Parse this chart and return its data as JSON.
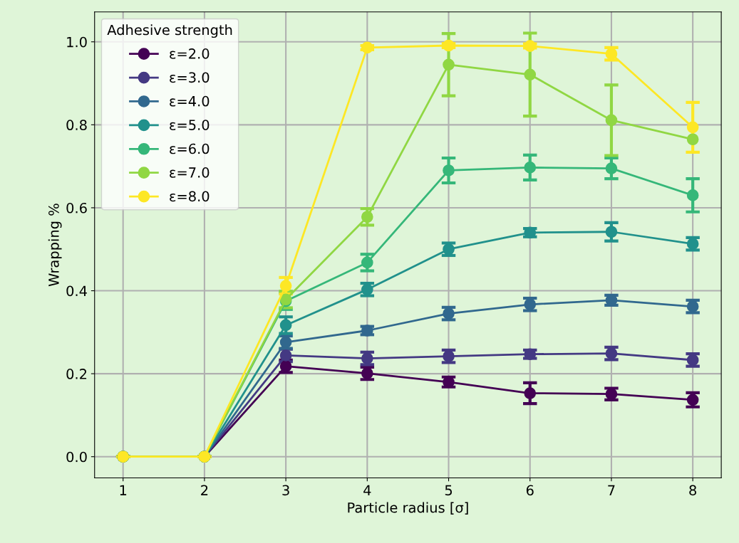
{
  "chart_data": {
    "type": "line",
    "xlabel": "Particle radius [σ]",
    "ylabel": "Wrapping %",
    "legend_title": "Adhesive strength",
    "legend": "top left",
    "grid": true,
    "marker": "circle",
    "line_style": "solid",
    "x": [
      1,
      2,
      3,
      4,
      5,
      6,
      7,
      8
    ],
    "xlim": [
      0.65,
      8.35
    ],
    "ylim": [
      -0.051,
      1.072
    ],
    "xticks": [
      1,
      2,
      3,
      4,
      5,
      6,
      7,
      8
    ],
    "yticks": [
      {
        "value": 0,
        "label": "0.0"
      },
      {
        "value": 0.2,
        "label": "0.2"
      },
      {
        "value": 0.4,
        "label": "0.4"
      },
      {
        "value": 0.6,
        "label": "0.6"
      },
      {
        "value": 0.8,
        "label": "0.8"
      },
      {
        "value": 1,
        "label": "1.0"
      }
    ],
    "series": [
      {
        "name": "ε=2.0",
        "color": "#440154",
        "values": [
          0,
          0,
          0.218,
          0.201,
          0.18,
          0.153,
          0.151,
          0.137
        ],
        "errors": [
          0,
          0,
          0.015,
          0.015,
          0.012,
          0.025,
          0.014,
          0.017
        ]
      },
      {
        "name": "ε=3.0",
        "color": "#443983",
        "values": [
          0,
          0,
          0.244,
          0.237,
          0.242,
          0.247,
          0.249,
          0.233
        ],
        "errors": [
          0,
          0,
          0.015,
          0.015,
          0.015,
          0.01,
          0.015,
          0.015
        ]
      },
      {
        "name": "ε=4.0",
        "color": "#31688e",
        "values": [
          0,
          0,
          0.276,
          0.304,
          0.345,
          0.367,
          0.377,
          0.362
        ],
        "errors": [
          0,
          0,
          0.015,
          0.01,
          0.015,
          0.015,
          0.012,
          0.015
        ]
      },
      {
        "name": "ε=5.0",
        "color": "#21918c",
        "values": [
          0,
          0,
          0.317,
          0.403,
          0.5,
          0.54,
          0.542,
          0.513
        ],
        "errors": [
          0,
          0,
          0.02,
          0.015,
          0.015,
          0.01,
          0.022,
          0.015
        ]
      },
      {
        "name": "ε=6.0",
        "color": "#35b779",
        "values": [
          0,
          0,
          0.375,
          0.468,
          0.69,
          0.697,
          0.695,
          0.63
        ],
        "errors": [
          0,
          0,
          0.02,
          0.02,
          0.03,
          0.03,
          0.025,
          0.04
        ]
      },
      {
        "name": "ε=7.0",
        "color": "#90d743",
        "values": [
          0,
          0,
          0.379,
          0.578,
          0.945,
          0.921,
          0.811,
          0.765
        ],
        "errors": [
          0,
          0,
          0.02,
          0.02,
          0.075,
          0.1,
          0.085,
          null
        ]
      },
      {
        "name": "ε=8.0",
        "color": "#fde725",
        "values": [
          0,
          0,
          0.412,
          0.986,
          0.991,
          0.99,
          0.971,
          0.794
        ],
        "errors": [
          0,
          0,
          0.02,
          0.005,
          0.005,
          0.005,
          0.015,
          0.06
        ]
      }
    ]
  }
}
